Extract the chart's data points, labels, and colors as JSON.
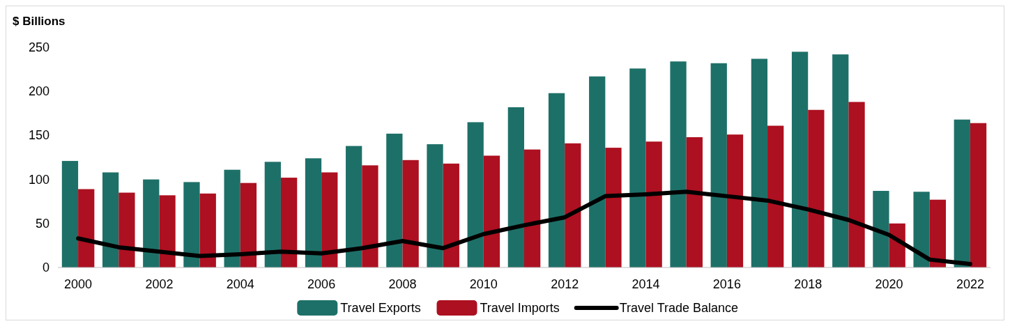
{
  "chart_data": {
    "type": "bar",
    "ylabel": "$ Billions",
    "categories": [
      "2000",
      null,
      "2002",
      null,
      "2004",
      null,
      "2006",
      null,
      "2008",
      null,
      "2010",
      null,
      "2012",
      null,
      "2014",
      null,
      "2016",
      null,
      "2018",
      null,
      "2020",
      null,
      "2022"
    ],
    "series": [
      {
        "name": "Travel Exports",
        "color": "#1d7068",
        "values": [
          121,
          108,
          100,
          97,
          111,
          120,
          124,
          138,
          152,
          140,
          165,
          182,
          198,
          217,
          226,
          234,
          232,
          237,
          245,
          242,
          87,
          86,
          168
        ]
      },
      {
        "name": "Travel Imports",
        "color": "#ad1020",
        "values": [
          89,
          85,
          82,
          84,
          96,
          102,
          108,
          116,
          122,
          118,
          127,
          134,
          141,
          136,
          143,
          148,
          151,
          161,
          179,
          188,
          50,
          77,
          164
        ]
      },
      {
        "name": "Travel Trade Balance",
        "type": "line",
        "color": "#000000",
        "values": [
          33,
          23,
          18,
          13,
          15,
          18,
          16,
          22,
          30,
          22,
          38,
          48,
          57,
          81,
          83,
          86,
          81,
          76,
          66,
          54,
          37,
          9,
          4
        ]
      }
    ],
    "ylim": [
      0,
      250
    ],
    "yticks": [
      0,
      50,
      100,
      150,
      200,
      250
    ],
    "grid": false,
    "legend": "bottom"
  }
}
